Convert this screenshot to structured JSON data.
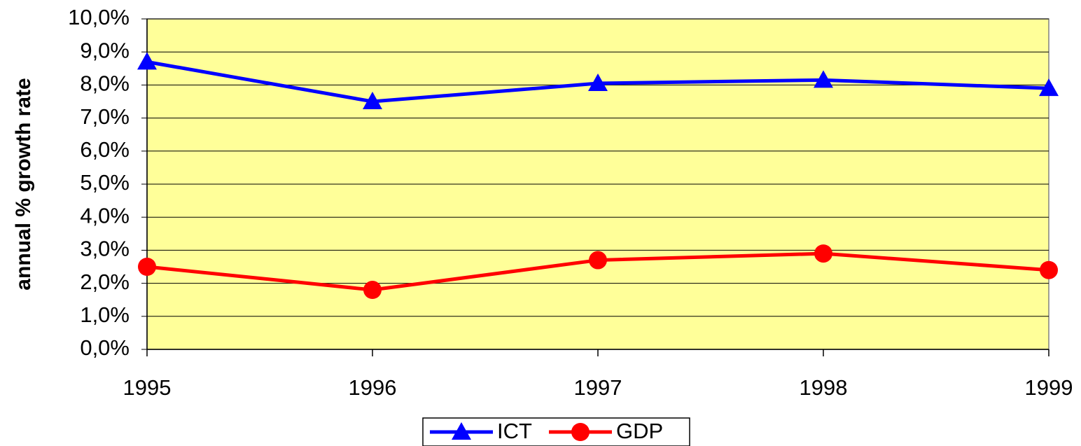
{
  "chart_data": {
    "type": "line",
    "y_label": "annual % growth rate",
    "x": [
      1995,
      1996,
      1997,
      1998,
      1999
    ],
    "xlim": [
      1995,
      1999
    ],
    "xticks": [
      1995,
      1996,
      1997,
      1998,
      1999
    ],
    "ylim": [
      0,
      10
    ],
    "yticks": [
      {
        "value": 0,
        "label": "0,0%"
      },
      {
        "value": 1,
        "label": "1,0%"
      },
      {
        "value": 2,
        "label": "2,0%"
      },
      {
        "value": 3,
        "label": "3,0%"
      },
      {
        "value": 4,
        "label": "4,0%"
      },
      {
        "value": 5,
        "label": "5,0%"
      },
      {
        "value": 6,
        "label": "6,0%"
      },
      {
        "value": 7,
        "label": "7,0%"
      },
      {
        "value": 8,
        "label": "8,0%"
      },
      {
        "value": 9,
        "label": "9,0%"
      },
      {
        "value": 10,
        "label": "10,0%"
      }
    ],
    "grid": true,
    "legend": "bottom",
    "series": [
      {
        "name": "ICT",
        "color": "#0000ff",
        "marker": "triangle",
        "values": [
          8.7,
          7.5,
          8.05,
          8.15,
          7.9
        ]
      },
      {
        "name": "GDP",
        "color": "#ff0000",
        "marker": "circle",
        "values": [
          2.5,
          1.8,
          2.7,
          2.9,
          2.4
        ]
      }
    ]
  }
}
